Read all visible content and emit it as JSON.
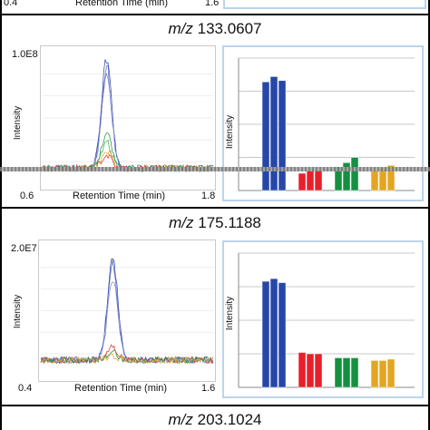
{
  "top_fragment": {
    "xmin": "0.4",
    "xlabel": "Retention Time (min)",
    "xmax": "1.6"
  },
  "chart_data": [
    {
      "type": "line",
      "title_prefix": "m/z",
      "title_mass": "133.0607",
      "ymax_label": "1.0E8",
      "ylabel": "Intensity",
      "xlabel": "Retention Time (min)",
      "xlim": [
        0.6,
        1.8
      ],
      "x_min_label": "0.6",
      "x_max_label": "1.8",
      "peak_x": 1.05,
      "series": [
        {
          "color": "#2b3f9e",
          "peak": 0.95
        },
        {
          "color": "#5566c0",
          "peak": 0.88
        },
        {
          "color": "#7a86cf",
          "peak": 0.8
        },
        {
          "color": "#1f8a3a",
          "peak": 0.38
        },
        {
          "color": "#3aa84e",
          "peak": 0.32
        },
        {
          "color": "#d8a623",
          "peak": 0.25
        },
        {
          "color": "#e03030",
          "peak": 0.22
        }
      ],
      "bar_ylabel": "Intensity",
      "bar_groups": [
        {
          "color": "#2647a8",
          "values": [
            0.82,
            0.86,
            0.83
          ]
        },
        {
          "color": "#e8202a",
          "values": [
            0.13,
            0.15,
            0.15
          ]
        },
        {
          "color": "#139140",
          "values": [
            0.18,
            0.21,
            0.25
          ]
        },
        {
          "color": "#e3a623",
          "values": [
            0.15,
            0.17,
            0.19
          ]
        }
      ]
    },
    {
      "type": "line",
      "title_prefix": "m/z",
      "title_mass": "175.1188",
      "ymax_label": "2.0E7",
      "ylabel": "Intensity",
      "xlabel": "Retention Time (min)",
      "xlim": [
        0.4,
        1.6
      ],
      "x_min_label": "0.4",
      "x_max_label": "1.6",
      "peak_x": 0.9,
      "series": [
        {
          "color": "#2b3f9e",
          "peak": 0.92
        },
        {
          "color": "#5566c0",
          "peak": 0.85
        },
        {
          "color": "#7a86cf",
          "peak": 0.75
        },
        {
          "color": "#e03030",
          "peak": 0.22
        },
        {
          "color": "#1f8a3a",
          "peak": 0.18
        },
        {
          "color": "#d8a623",
          "peak": 0.15
        }
      ],
      "bar_ylabel": "Intensity",
      "bar_groups": [
        {
          "color": "#2647a8",
          "values": [
            0.79,
            0.81,
            0.78
          ]
        },
        {
          "color": "#e8202a",
          "values": [
            0.26,
            0.25,
            0.25
          ]
        },
        {
          "color": "#139140",
          "values": [
            0.22,
            0.22,
            0.22
          ]
        },
        {
          "color": "#e3a623",
          "values": [
            0.2,
            0.2,
            0.21
          ]
        }
      ]
    }
  ],
  "bottom_title": {
    "prefix": "m/z",
    "mass": "203.1024"
  }
}
